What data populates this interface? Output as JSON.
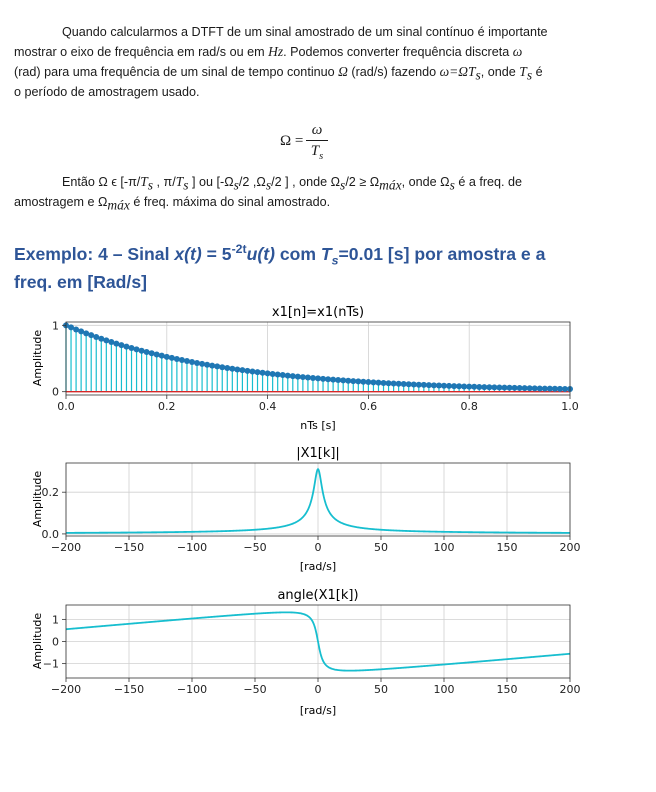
{
  "intro": {
    "l1": "Quando calcularmos a DTFT de um sinal amostrado de um sinal contínuo é importante",
    "l2_a": "mostrar o eixo de frequência em rad/s ou em ",
    "l2_hz": "Hz",
    "l2_b": ". Podemos converter frequência discreta ",
    "l2_omega": "ω",
    "l3_a": "(rad) para uma frequência de um sinal de tempo continuo ",
    "l3_Omega": "Ω",
    "l3_b": " (rad/s) fazendo ",
    "l3_eq": "ω=ΩT",
    "l3_eq_sub": "s",
    "l3_c": ", onde ",
    "l3_T": "T",
    "l3_T_sub": "s",
    "l3_d": " é",
    "l4": "o período de amostragem usado."
  },
  "formula": {
    "lhs": "Ω =",
    "num": "ω",
    "den": "T",
    "den_sub": "s"
  },
  "range": {
    "a": "Então Ω ϵ [-π/",
    "T1": "T",
    "s1": "s",
    "b": " , π/",
    "T2": "T",
    "s2": "s",
    "c": " ] ou [-Ω",
    "s3": "s",
    "d": "/2 ,Ω",
    "s4": "s",
    "e": "/2 ] , onde Ω",
    "s5": "s",
    "f": "/2 ≥ Ω",
    "max1": "máx",
    "g": ", onde Ω",
    "s6": "s",
    "h": " é a freq. de",
    "line2_a": "amostragem e Ω",
    "max2": "máx",
    "line2_b": " é freq. máxima  do sinal amostrado."
  },
  "heading": {
    "a": "Exemplo: 4 – Sinal ",
    "x": "x(t)",
    "b": " = 5",
    "exp": "-2t",
    "u": "u(t)",
    "c": " com ",
    "T": "T",
    "T_sub": "s",
    "d": "=0.01 [s] por amostra e a",
    "line2": "freq. em [Rad/s]"
  },
  "chart_data": [
    {
      "type": "stem",
      "title": "x1[n]=x1(nTs)",
      "xlabel": "nTs [s]",
      "ylabel": "Amplitude",
      "xlim": [
        0,
        1
      ],
      "ylim": [
        -0.05,
        1.05
      ],
      "xticks": [
        "0.0",
        "0.2",
        "0.4",
        "0.6",
        "0.8",
        "1.0"
      ],
      "yticks": [
        "0",
        "1"
      ],
      "Ts": 0.01,
      "n_samples": 101,
      "base": 5,
      "rate": -2,
      "marker_color": "#1f77b4",
      "stem_color": "#17becf",
      "baseline_color": "#d62728"
    },
    {
      "type": "line",
      "title": "|X1[k]|",
      "xlabel": "[rad/s]",
      "ylabel": "Amplitude",
      "xlim": [
        -200,
        200
      ],
      "ylim": [
        -0.01,
        0.34
      ],
      "xticks": [
        "−200",
        "−150",
        "−100",
        "−50",
        "0",
        "50",
        "100",
        "150",
        "200"
      ],
      "yticks": [
        "0.0",
        "0.2"
      ],
      "a": 3.2189,
      "line_color": "#17becf"
    },
    {
      "type": "line",
      "title": "angle(X1[k])",
      "xlabel": "[rad/s]",
      "ylabel": "Amplitude",
      "xlim": [
        -200,
        200
      ],
      "ylim": [
        -1.65,
        1.65
      ],
      "xticks": [
        "−200",
        "−150",
        "−100",
        "−50",
        "0",
        "50",
        "100",
        "150",
        "200"
      ],
      "yticks": [
        "−1",
        "0",
        "1"
      ],
      "a": 3.2189,
      "line_color": "#17becf"
    }
  ]
}
